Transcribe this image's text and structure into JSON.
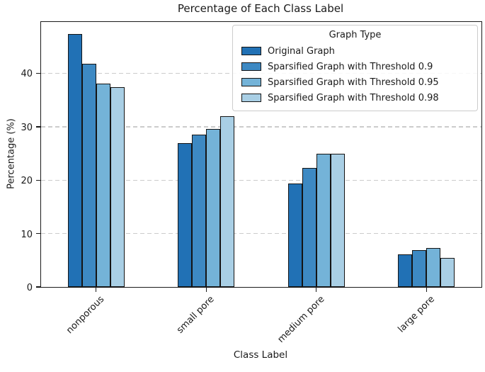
{
  "figure": {
    "background": "#ffffff",
    "spine_color": "#1a1a1a",
    "grid_color": "#cccccc",
    "grid_style": "dashed"
  },
  "chart_data": {
    "type": "bar",
    "title": "Percentage of Each Class Label",
    "xlabel": "Class Label",
    "ylabel": "Percentage (%)",
    "categories": [
      "nonporous",
      "small pore",
      "medium pore",
      "large pore"
    ],
    "series": [
      {
        "name": "Original Graph",
        "color": "#2171b5",
        "values": [
          47.3,
          26.9,
          19.4,
          6.1
        ]
      },
      {
        "name": "Sparsified Graph with Threshold 0.9",
        "color": "#3d89c3",
        "values": [
          41.8,
          28.5,
          22.3,
          6.9
        ]
      },
      {
        "name": "Sparsified Graph with Threshold 0.95",
        "color": "#74b3d8",
        "values": [
          38.0,
          29.6,
          24.9,
          7.3
        ]
      },
      {
        "name": "Sparsified Graph with Threshold 0.98",
        "color": "#a9cfe5",
        "values": [
          37.4,
          32.0,
          24.9,
          5.5
        ]
      }
    ],
    "ylim": [
      0,
      49.6
    ],
    "yticks": [
      0,
      10,
      20,
      30,
      40
    ],
    "bar_edge_color": "#141414",
    "grid": "horizontal-dashed",
    "legend": {
      "title": "Graph Type",
      "position": "upper right"
    }
  }
}
